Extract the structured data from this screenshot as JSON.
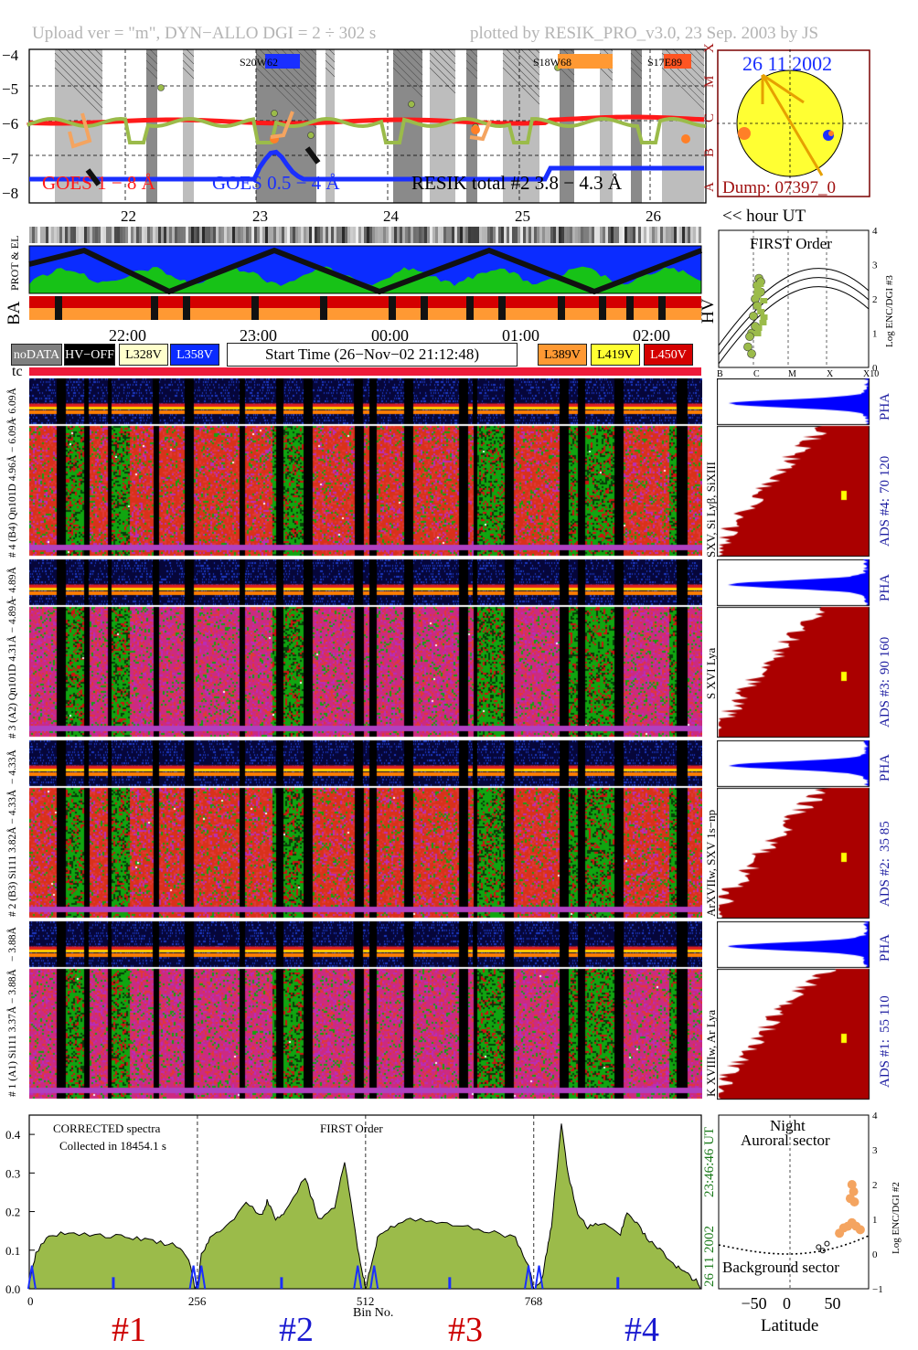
{
  "header": {
    "left": "Upload ver = \"m\", DYN−ALLO DGI =   2 ÷ 302 s",
    "right": "plotted by RESIK_PRO_v3.0, 23 Sep. 2003 by JS"
  },
  "goes_panel": {
    "y_ticks": [
      "−4",
      "−5",
      "−6",
      "−7",
      "−8"
    ],
    "class_labels": [
      "X",
      "M",
      "C",
      "B",
      "A"
    ],
    "legend_goes_long": "GOES 1 − 8 Å",
    "legend_goes_short": "GOES 0.5 − 4 Å",
    "legend_resik": "RESIK total #2  3.8 − 4.3 Å",
    "regions": [
      "S20W62",
      "S18W68",
      "S17E89"
    ],
    "hour_ticks": [
      "22",
      "23",
      "24",
      "25",
      "26"
    ],
    "hour_ut_label": "<< hour UT"
  },
  "sun_panel": {
    "date": "26 11 2002",
    "dump": "Dump: 07397_0"
  },
  "status_panel": {
    "label_prot": "PROT & EL",
    "label_ba": "BA",
    "label_hv": "HV",
    "time_ticks": [
      "22:00",
      "23:00",
      "00:00",
      "01:00",
      "02:00"
    ],
    "label_tc": "tc"
  },
  "legend_buttons": {
    "nodata": "noDATA",
    "hv_off": "HV−OFF",
    "l328": "L328V",
    "l358": "L358V",
    "start_time": "Start Time (26−Nov−02 21:12:48)",
    "l389": "L389V",
    "l419": "L419V",
    "l450": "L450V"
  },
  "first_order_panel": {
    "title": "FIRST Order",
    "ylabel": "Log ENC/DGI #3",
    "y_ticks": [
      "4",
      "3",
      "2",
      "1",
      "0"
    ],
    "x_ticks": [
      "B",
      "C",
      "M",
      "X",
      "X10"
    ]
  },
  "channels": [
    {
      "id": "4",
      "pha_label": "− 6.09Å",
      "label": "# 4 (B4) Qn101D 4.96Å − 6.09Å",
      "lines": "SXV, Si Lyβ, SiXIII",
      "ads": "ADS #4:",
      "ads_range": "70 120",
      "pha": "PHA"
    },
    {
      "id": "3",
      "pha_label": "− 4.89Å",
      "label": "# 3 (A2) Qn101D 4.31Å − 4.89Å",
      "lines": "S XVI Lya",
      "ads": "ADS #3:",
      "ads_range": "90 160",
      "pha": "PHA"
    },
    {
      "id": "2",
      "pha_label": "− 4.33Å",
      "label": "# 2 (B3) Si111 3.82Å − 4.33Å",
      "lines": "ArXVIIw, SXV 1s−np",
      "ads": "ADS #2:",
      "ads_range": "35 85",
      "pha": "PHA"
    },
    {
      "id": "1",
      "pha_label": "− 3.88Å",
      "label": "# 1 (A1) Si111 3.37Å − 3.88Å",
      "lines": "K XVIIIw, Ar Lya",
      "ads": "ADS #1:",
      "ads_range": "55 110",
      "pha": "PHA"
    }
  ],
  "spectrum_panel": {
    "note1": "CORRECTED spectra",
    "note2": "Collected in 18454.1 s",
    "note3": "FIRST Order",
    "y_ticks": [
      "0.4",
      "0.3",
      "0.2",
      "0.1",
      "0.0"
    ],
    "x_ticks": [
      "0",
      "256",
      "512",
      "768"
    ],
    "xlabel": "Bin No.",
    "date_label": "26 11 2002",
    "time_label": "23:46:46 UT",
    "segments": [
      "#1",
      "#2",
      "#3",
      "#4"
    ]
  },
  "latitude_panel": {
    "top1": "Night",
    "top2": "Auroral sector",
    "bottom": "Background sector",
    "ylabel": "Log ENC/DGI #2",
    "y_ticks": [
      "4",
      "3",
      "2",
      "1",
      "0",
      "−1"
    ],
    "x_ticks": [
      "−50",
      "0",
      "50"
    ],
    "xlabel": "Latitude"
  },
  "chart_data": {
    "type": "line",
    "title": "",
    "xlabel": "Bin No.",
    "ylabel": "",
    "xlim": [
      0,
      1023
    ],
    "ylim": [
      0.0,
      0.45
    ],
    "x_ticks": [
      0,
      256,
      512,
      768
    ],
    "segment_boundaries": [
      256,
      512,
      768
    ],
    "series": [
      {
        "name": "",
        "color": "#9bbb4a",
        "x": [
          0,
          10,
          30,
          60,
          100,
          140,
          170,
          200,
          230,
          246,
          252,
          256,
          262,
          275,
          300,
          330,
          355,
          362,
          375,
          390,
          420,
          440,
          465,
          480,
          490,
          500,
          510,
          512,
          520,
          530,
          550,
          580,
          620,
          660,
          700,
          740,
          760,
          768,
          780,
          790,
          795,
          800,
          810,
          820,
          835,
          850,
          870,
          900,
          910,
          925,
          940,
          960,
          985,
          1000,
          1015,
          1023
        ],
        "y": [
          0.02,
          0.09,
          0.14,
          0.145,
          0.14,
          0.135,
          0.13,
          0.12,
          0.11,
          0.06,
          0.0,
          0.0,
          0.09,
          0.13,
          0.16,
          0.22,
          0.19,
          0.23,
          0.18,
          0.2,
          0.29,
          0.18,
          0.21,
          0.33,
          0.22,
          0.1,
          0.02,
          0.0,
          0.06,
          0.13,
          0.16,
          0.18,
          0.17,
          0.16,
          0.15,
          0.13,
          0.06,
          0.0,
          0.02,
          0.12,
          0.16,
          0.25,
          0.43,
          0.3,
          0.19,
          0.16,
          0.17,
          0.14,
          0.2,
          0.17,
          0.13,
          0.1,
          0.06,
          0.04,
          0.02,
          0.0
        ]
      }
    ],
    "first_order": {
      "x_labels": [
        "B",
        "C",
        "M",
        "X",
        "X10"
      ],
      "ylim": [
        0,
        4
      ],
      "points_log_flux": [
        [
          -5.95,
          2.0
        ],
        [
          -5.9,
          2.4
        ],
        [
          -5.8,
          2.2
        ],
        [
          -5.9,
          1.8
        ],
        [
          -6.0,
          1.5
        ],
        [
          -6.05,
          1.0
        ],
        [
          -6.1,
          0.9
        ],
        [
          -6.15,
          0.6
        ],
        [
          -6.05,
          0.4
        ],
        [
          -5.95,
          1.2
        ],
        [
          -5.85,
          2.6
        ],
        [
          -5.8,
          2.5
        ]
      ]
    },
    "latitude": {
      "xlim": [
        -90,
        90
      ],
      "ylim": [
        -1,
        4
      ],
      "points": [
        [
          70,
          2.0
        ],
        [
          72,
          1.8
        ],
        [
          73,
          1.5
        ],
        [
          68,
          1.6
        ],
        [
          65,
          0.8
        ],
        [
          70,
          0.9
        ],
        [
          75,
          0.8
        ],
        [
          55,
          0.6
        ],
        [
          80,
          0.7
        ],
        [
          60,
          0.75
        ]
      ]
    },
    "goes": {
      "ylim": [
        -8.2,
        -3.8
      ],
      "hour_range": [
        21.2,
        26.3
      ],
      "goes_long_level": -6.0,
      "goes_short_level": -7.7
    }
  },
  "colors": {
    "goes_long": "#ff1a1a",
    "goes_short": "#1a2fff",
    "resik": "#9bbb4a",
    "ads_fill": "#aa0000",
    "pha_fill": "#0000ff",
    "sun": "#ffff33",
    "frame_dark": "#7a0000"
  }
}
